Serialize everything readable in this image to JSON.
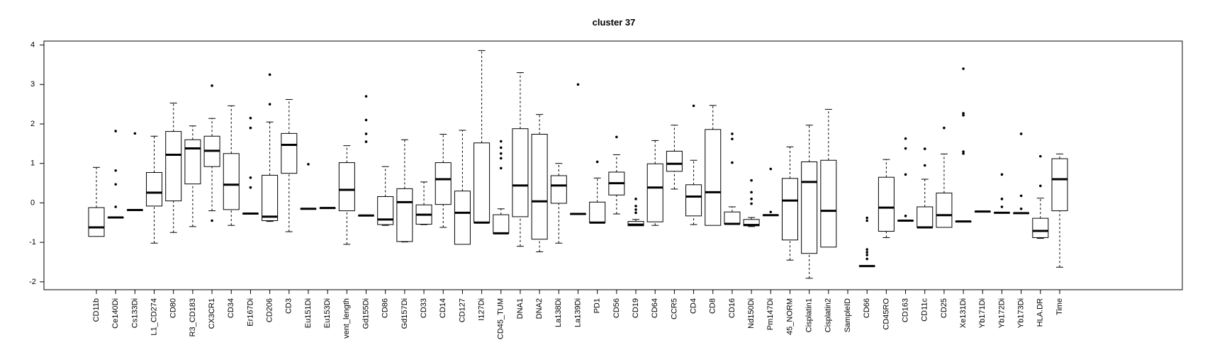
{
  "chart_data": {
    "type": "boxplot",
    "title": "cluster 37",
    "xlabel": "",
    "ylabel": "",
    "ylim": [
      -2.2,
      4.1
    ],
    "yticks": [
      -2,
      -1,
      0,
      1,
      2,
      3,
      4
    ],
    "grid": false,
    "box_color": "#000000",
    "categories": [
      "CD11b",
      "Ce140Di",
      "Cs133Di",
      "L1_CD274",
      "CD80",
      "R3_CD183",
      "CX3CR1",
      "CD34",
      "Er167Di",
      "CD206",
      "CD3",
      "Eu151Di",
      "Eu153Di",
      "vent_length",
      "Gd155Di",
      "CD86",
      "Gd157Di",
      "CD33",
      "CD14",
      "CD127",
      "I127Di",
      "CD45_TUM",
      "DNA1",
      "DNA2",
      "La138Di",
      "La139Di",
      "PD1",
      "CD56",
      "CD19",
      "CD64",
      "CCR5",
      "CD4",
      "CD8",
      "CD16",
      "Nd150Di",
      "Pm147Di",
      "45_NORM",
      "Cisplatin1",
      "Cisplatin2",
      "SampleID",
      "CD66",
      "CD45RO",
      "CD163",
      "CD11c",
      "CD25",
      "Xe131Di",
      "Yb171Di",
      "Yb172Di",
      "Yb173Di",
      "HLA.DR",
      "Time"
    ],
    "boxes": [
      {
        "whislo": -0.85,
        "q1": -0.85,
        "med": -0.62,
        "q3": -0.12,
        "whishi": 0.9,
        "fliers": []
      },
      {
        "whislo": -0.37,
        "q1": -0.37,
        "med": -0.37,
        "q3": -0.37,
        "whishi": -0.37,
        "fliers": [
          1.82,
          0.82,
          0.47,
          -0.1
        ]
      },
      {
        "whislo": -0.18,
        "q1": -0.18,
        "med": -0.18,
        "q3": -0.18,
        "whishi": -0.18,
        "fliers": [
          1.76
        ]
      },
      {
        "whislo": -1.02,
        "q1": -0.08,
        "med": 0.26,
        "q3": 0.77,
        "whishi": 1.69,
        "fliers": []
      },
      {
        "whislo": -0.75,
        "q1": 0.05,
        "med": 1.22,
        "q3": 1.81,
        "whishi": 2.53,
        "fliers": []
      },
      {
        "whislo": -0.6,
        "q1": 0.48,
        "med": 1.38,
        "q3": 1.6,
        "whishi": 1.95,
        "fliers": []
      },
      {
        "whislo": -0.2,
        "q1": 0.92,
        "med": 1.32,
        "q3": 1.69,
        "whishi": 2.14,
        "fliers": [
          2.97,
          -0.45
        ]
      },
      {
        "whislo": -0.57,
        "q1": -0.17,
        "med": 0.46,
        "q3": 1.25,
        "whishi": 2.46,
        "fliers": []
      },
      {
        "whislo": -0.27,
        "q1": -0.27,
        "med": -0.27,
        "q3": -0.27,
        "whishi": -0.27,
        "fliers": [
          2.15,
          1.9,
          0.64,
          0.39
        ]
      },
      {
        "whislo": -0.47,
        "q1": -0.45,
        "med": -0.35,
        "q3": 0.7,
        "whishi": 2.05,
        "fliers": [
          3.25,
          2.5
        ]
      },
      {
        "whislo": -0.73,
        "q1": 0.75,
        "med": 1.47,
        "q3": 1.76,
        "whishi": 2.62,
        "fliers": []
      },
      {
        "whislo": -0.15,
        "q1": -0.15,
        "med": -0.15,
        "q3": -0.15,
        "whishi": -0.15,
        "fliers": [
          0.98
        ]
      },
      {
        "whislo": -0.13,
        "q1": -0.13,
        "med": -0.13,
        "q3": -0.13,
        "whishi": -0.13,
        "fliers": []
      },
      {
        "whislo": -1.05,
        "q1": -0.2,
        "med": 0.33,
        "q3": 1.02,
        "whishi": 1.45,
        "fliers": []
      },
      {
        "whislo": -0.32,
        "q1": -0.32,
        "med": -0.32,
        "q3": -0.32,
        "whishi": -0.32,
        "fliers": [
          2.7,
          2.1,
          1.75,
          1.55
        ]
      },
      {
        "whislo": -0.57,
        "q1": -0.55,
        "med": -0.42,
        "q3": 0.16,
        "whishi": 0.92,
        "fliers": []
      },
      {
        "whislo": -0.99,
        "q1": -0.98,
        "med": 0.02,
        "q3": 0.36,
        "whishi": 1.6,
        "fliers": []
      },
      {
        "whislo": -0.55,
        "q1": -0.54,
        "med": -0.3,
        "q3": -0.05,
        "whishi": 0.53,
        "fliers": []
      },
      {
        "whislo": -0.62,
        "q1": -0.04,
        "med": 0.6,
        "q3": 1.02,
        "whishi": 1.74,
        "fliers": []
      },
      {
        "whislo": -1.05,
        "q1": -1.05,
        "med": -0.25,
        "q3": 0.3,
        "whishi": 1.84,
        "fliers": []
      },
      {
        "whislo": -0.5,
        "q1": -0.5,
        "med": -0.5,
        "q3": 1.52,
        "whishi": 3.86,
        "fliers": []
      },
      {
        "whislo": -0.77,
        "q1": -0.77,
        "med": -0.77,
        "q3": -0.3,
        "whishi": -0.15,
        "fliers": [
          1.56,
          1.4,
          1.25,
          1.13,
          0.88
        ]
      },
      {
        "whislo": -1.1,
        "q1": -0.35,
        "med": 0.44,
        "q3": 1.88,
        "whishi": 3.3,
        "fliers": []
      },
      {
        "whislo": -1.24,
        "q1": -0.92,
        "med": 0.04,
        "q3": 1.74,
        "whishi": 2.24,
        "fliers": []
      },
      {
        "whislo": -1.02,
        "q1": -0.01,
        "med": 0.44,
        "q3": 0.69,
        "whishi": 1.0,
        "fliers": []
      },
      {
        "whislo": -0.28,
        "q1": -0.28,
        "med": -0.28,
        "q3": -0.28,
        "whishi": -0.28,
        "fliers": [
          3.0
        ]
      },
      {
        "whislo": -0.5,
        "q1": -0.5,
        "med": -0.5,
        "q3": 0.02,
        "whishi": 0.63,
        "fliers": [
          1.04
        ]
      },
      {
        "whislo": -0.28,
        "q1": 0.2,
        "med": 0.5,
        "q3": 0.78,
        "whishi": 1.22,
        "fliers": [
          1.67
        ]
      },
      {
        "whislo": -0.58,
        "q1": -0.58,
        "med": -0.55,
        "q3": -0.47,
        "whishi": -0.42,
        "fliers": [
          0.1,
          -0.08,
          -0.17,
          -0.25
        ]
      },
      {
        "whislo": -0.57,
        "q1": -0.48,
        "med": 0.39,
        "q3": 0.99,
        "whishi": 1.58,
        "fliers": []
      },
      {
        "whislo": 0.35,
        "q1": 0.8,
        "med": 0.99,
        "q3": 1.31,
        "whishi": 1.97,
        "fliers": []
      },
      {
        "whislo": -0.55,
        "q1": -0.33,
        "med": 0.16,
        "q3": 0.46,
        "whishi": 1.08,
        "fliers": [
          2.46
        ]
      },
      {
        "whislo": -0.57,
        "q1": -0.57,
        "med": 0.27,
        "q3": 1.86,
        "whishi": 2.47,
        "fliers": []
      },
      {
        "whislo": -0.53,
        "q1": -0.53,
        "med": -0.53,
        "q3": -0.23,
        "whishi": -0.1,
        "fliers": [
          1.75,
          1.62,
          1.02
        ]
      },
      {
        "whislo": -0.6,
        "q1": -0.58,
        "med": -0.56,
        "q3": -0.42,
        "whishi": -0.37,
        "fliers": [
          0.57,
          0.27,
          0.1,
          -0.02
        ]
      },
      {
        "whislo": -0.31,
        "q1": -0.31,
        "med": -0.31,
        "q3": -0.31,
        "whishi": -0.31,
        "fliers": [
          0.86,
          -0.23
        ]
      },
      {
        "whislo": -1.45,
        "q1": -0.94,
        "med": 0.06,
        "q3": 0.62,
        "whishi": 1.42,
        "fliers": []
      },
      {
        "whislo": -1.91,
        "q1": -1.28,
        "med": 0.53,
        "q3": 1.04,
        "whishi": 1.97,
        "fliers": []
      },
      {
        "whislo": -1.12,
        "q1": -1.12,
        "med": -0.2,
        "q3": 1.08,
        "whishi": 2.37,
        "fliers": []
      },
      {
        "whislo": null,
        "q1": null,
        "med": null,
        "q3": null,
        "whishi": null,
        "fliers": []
      },
      {
        "whislo": -1.6,
        "q1": -1.6,
        "med": -1.6,
        "q3": -1.6,
        "whishi": -1.6,
        "fliers": [
          -0.38,
          -0.45,
          -1.18,
          -1.25,
          -1.32,
          -1.42
        ]
      },
      {
        "whislo": -0.88,
        "q1": -0.72,
        "med": -0.12,
        "q3": 0.65,
        "whishi": 1.1,
        "fliers": []
      },
      {
        "whislo": -0.45,
        "q1": -0.45,
        "med": -0.45,
        "q3": -0.45,
        "whishi": -0.45,
        "fliers": [
          1.63,
          1.38,
          0.72,
          -0.33
        ]
      },
      {
        "whislo": -0.62,
        "q1": -0.62,
        "med": -0.62,
        "q3": -0.1,
        "whishi": 0.6,
        "fliers": [
          1.37,
          0.95
        ]
      },
      {
        "whislo": -0.62,
        "q1": -0.62,
        "med": -0.31,
        "q3": 0.25,
        "whishi": 1.24,
        "fliers": [
          1.9
        ]
      },
      {
        "whislo": -0.47,
        "q1": -0.47,
        "med": -0.47,
        "q3": -0.47,
        "whishi": -0.47,
        "fliers": [
          3.4,
          2.27,
          2.22,
          1.3,
          1.25
        ]
      },
      {
        "whislo": -0.22,
        "q1": -0.22,
        "med": -0.22,
        "q3": -0.22,
        "whishi": -0.22,
        "fliers": []
      },
      {
        "whislo": -0.25,
        "q1": -0.25,
        "med": -0.25,
        "q3": -0.25,
        "whishi": -0.25,
        "fliers": [
          0.72,
          0.1,
          -0.1
        ]
      },
      {
        "whislo": -0.26,
        "q1": -0.26,
        "med": -0.26,
        "q3": -0.26,
        "whishi": -0.26,
        "fliers": [
          1.75,
          0.18,
          -0.15
        ]
      },
      {
        "whislo": -0.9,
        "q1": -0.88,
        "med": -0.71,
        "q3": -0.39,
        "whishi": 0.12,
        "fliers": [
          1.18,
          0.43
        ]
      },
      {
        "whislo": -1.63,
        "q1": -0.2,
        "med": 0.6,
        "q3": 1.12,
        "whishi": 1.24,
        "fliers": []
      }
    ]
  }
}
